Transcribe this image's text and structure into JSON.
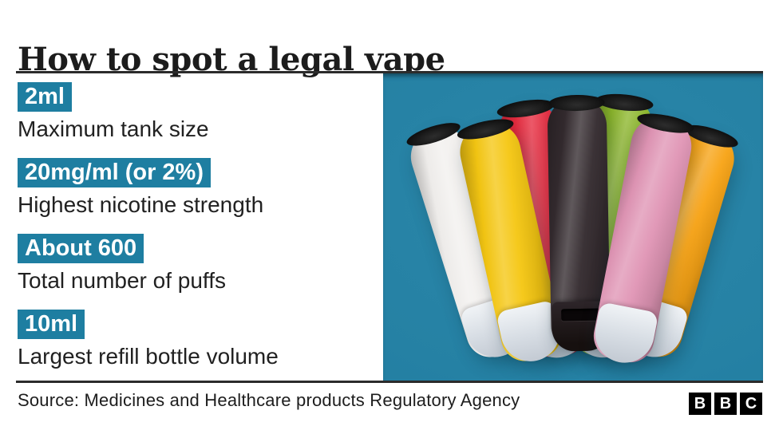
{
  "header": {
    "title": "How to spot a legal vape"
  },
  "facts": [
    {
      "value": "2ml",
      "label": "Maximum tank size"
    },
    {
      "value": "20mg/ml (or 2%)",
      "label": "Highest nicotine strength"
    },
    {
      "value": "About 600",
      "label": "Total number of puffs"
    },
    {
      "value": "10ml",
      "label": "Largest refill bottle volume"
    }
  ],
  "photo": {
    "alt": "Seven disposable vapes fanned out on a teal background",
    "vapes": [
      {
        "name": "white",
        "color": "#F2F0EE"
      },
      {
        "name": "yellow",
        "color": "#F5C713"
      },
      {
        "name": "red",
        "color": "#E62A3E"
      },
      {
        "name": "black",
        "color": "#332A2E"
      },
      {
        "name": "green",
        "color": "#8CB62B"
      },
      {
        "name": "pink",
        "color": "#E095B5"
      },
      {
        "name": "orange",
        "color": "#F8A416"
      }
    ]
  },
  "footer": {
    "source": "Source: Medicines and Healthcare products Regulatory Agency",
    "bbc_logo_letters": [
      "B",
      "B",
      "C"
    ]
  },
  "colors": {
    "accent_teal": "#1E7EA1",
    "photo_teal": "#2581A4",
    "rule_dark": "#2B2B2B",
    "text_dark": "#212121",
    "logo_black": "#000000"
  }
}
